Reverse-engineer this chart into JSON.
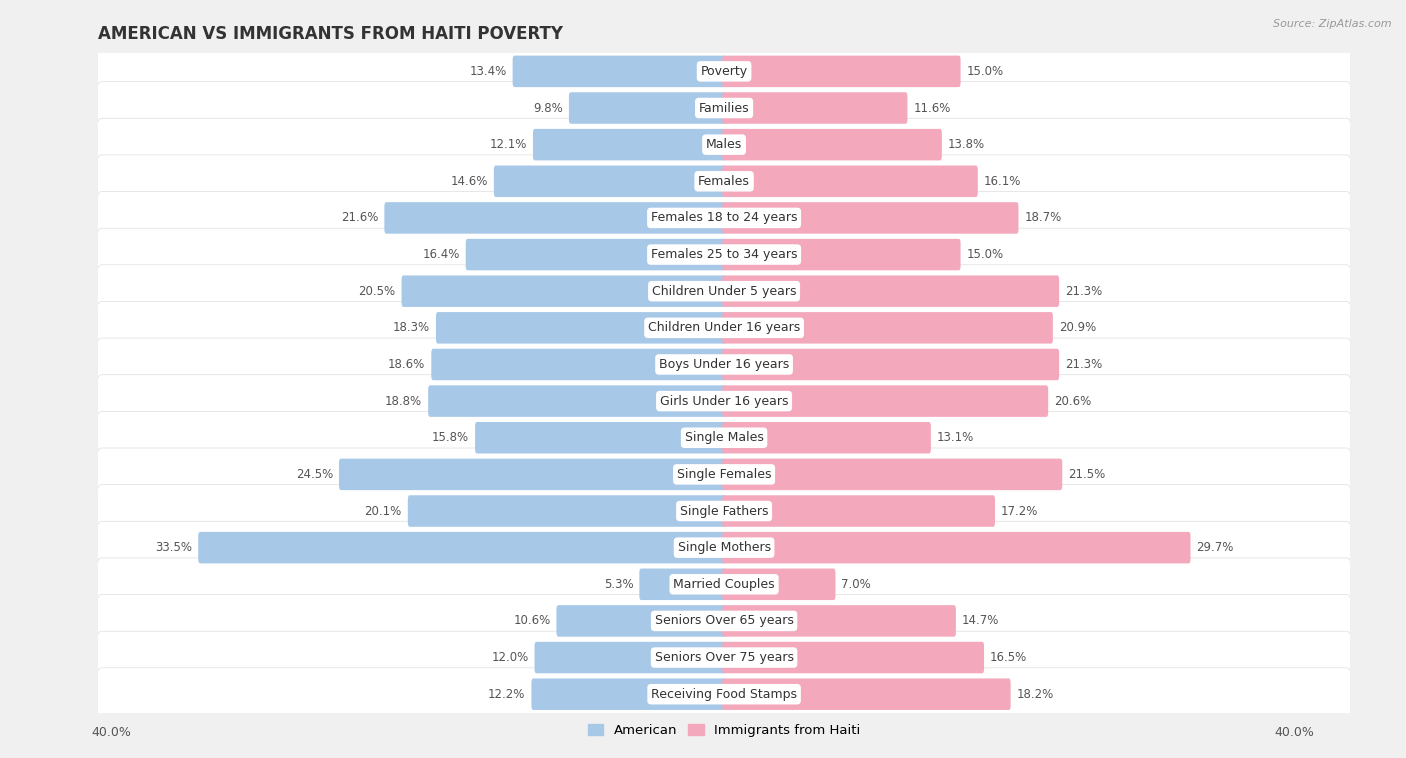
{
  "title": "AMERICAN VS IMMIGRANTS FROM HAITI POVERTY",
  "source": "Source: ZipAtlas.com",
  "categories": [
    "Poverty",
    "Families",
    "Males",
    "Females",
    "Females 18 to 24 years",
    "Females 25 to 34 years",
    "Children Under 5 years",
    "Children Under 16 years",
    "Boys Under 16 years",
    "Girls Under 16 years",
    "Single Males",
    "Single Females",
    "Single Fathers",
    "Single Mothers",
    "Married Couples",
    "Seniors Over 65 years",
    "Seniors Over 75 years",
    "Receiving Food Stamps"
  ],
  "american": [
    13.4,
    9.8,
    12.1,
    14.6,
    21.6,
    16.4,
    20.5,
    18.3,
    18.6,
    18.8,
    15.8,
    24.5,
    20.1,
    33.5,
    5.3,
    10.6,
    12.0,
    12.2
  ],
  "haiti": [
    15.0,
    11.6,
    13.8,
    16.1,
    18.7,
    15.0,
    21.3,
    20.9,
    21.3,
    20.6,
    13.1,
    21.5,
    17.2,
    29.7,
    7.0,
    14.7,
    16.5,
    18.2
  ],
  "american_color": "#A8C8E8",
  "haiti_color": "#F4A8BC",
  "row_color_even": "#f0f0f0",
  "row_color_odd": "#fafafa",
  "background_color": "#f0f0f0",
  "xlim": 40.0,
  "bar_height": 0.62,
  "title_fontsize": 12,
  "category_fontsize": 9,
  "value_fontsize": 8.5
}
